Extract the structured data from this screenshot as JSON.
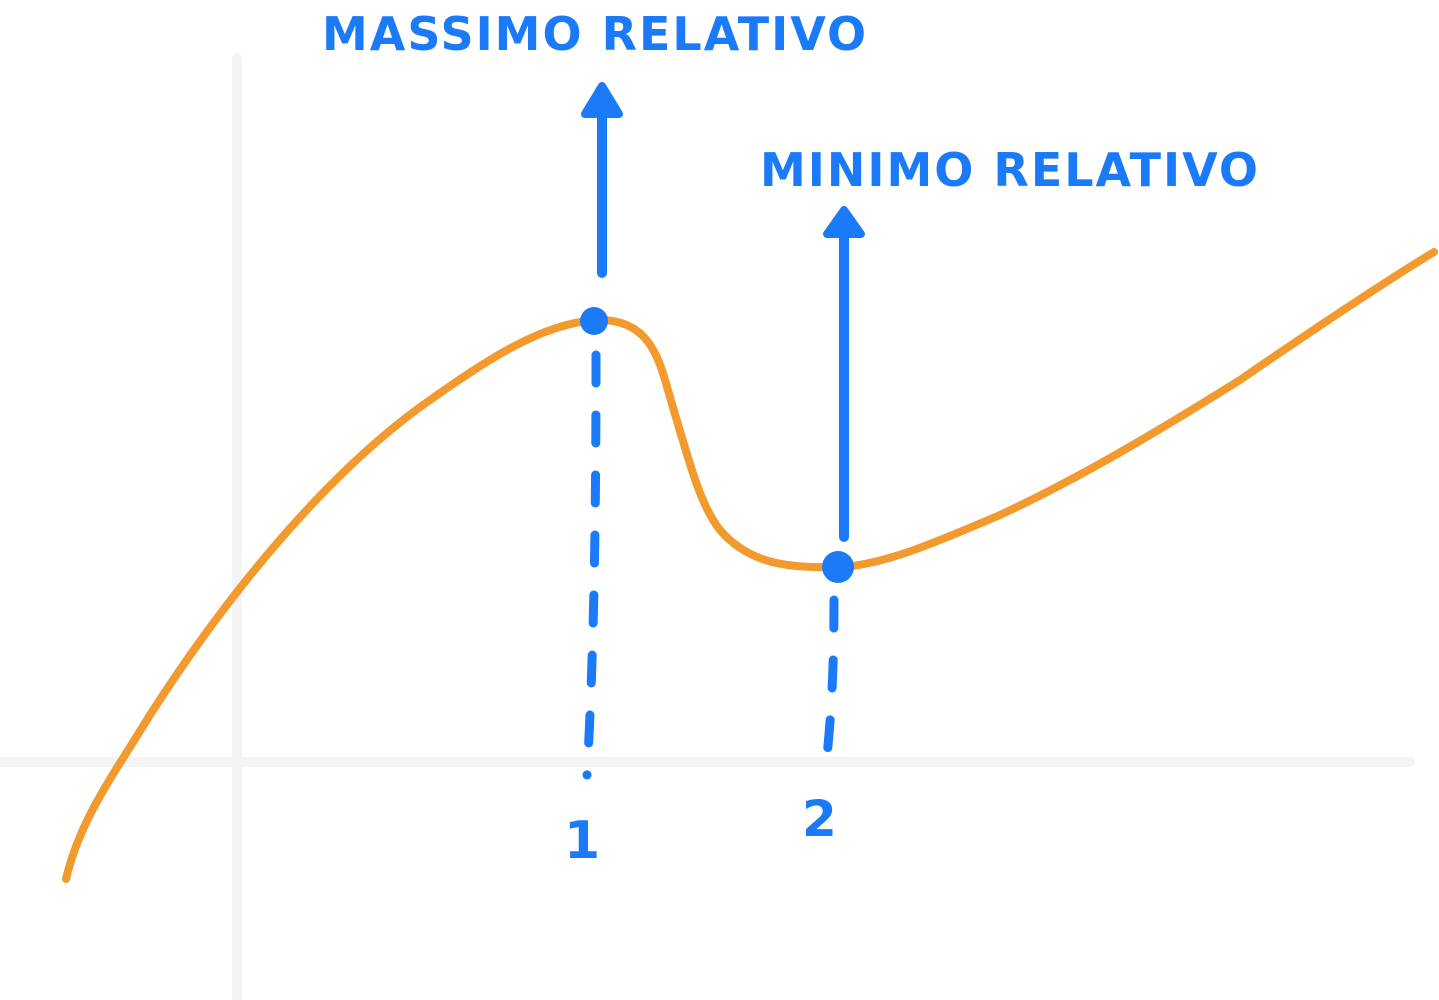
{
  "colors": {
    "background": "#ffffff",
    "axis": "#f4f4f4",
    "curve": "#f29a2e",
    "annotation": "#1a7af8"
  },
  "labels": {
    "max_label": "MASSIMO RELATIVO",
    "min_label": "MINIMO RELATIVO",
    "tick_1": "1",
    "tick_2": "2"
  },
  "icons": {
    "max_arrow": "arrow-up",
    "min_arrow": "arrow-up",
    "max_point": "dot",
    "min_point": "dot"
  }
}
